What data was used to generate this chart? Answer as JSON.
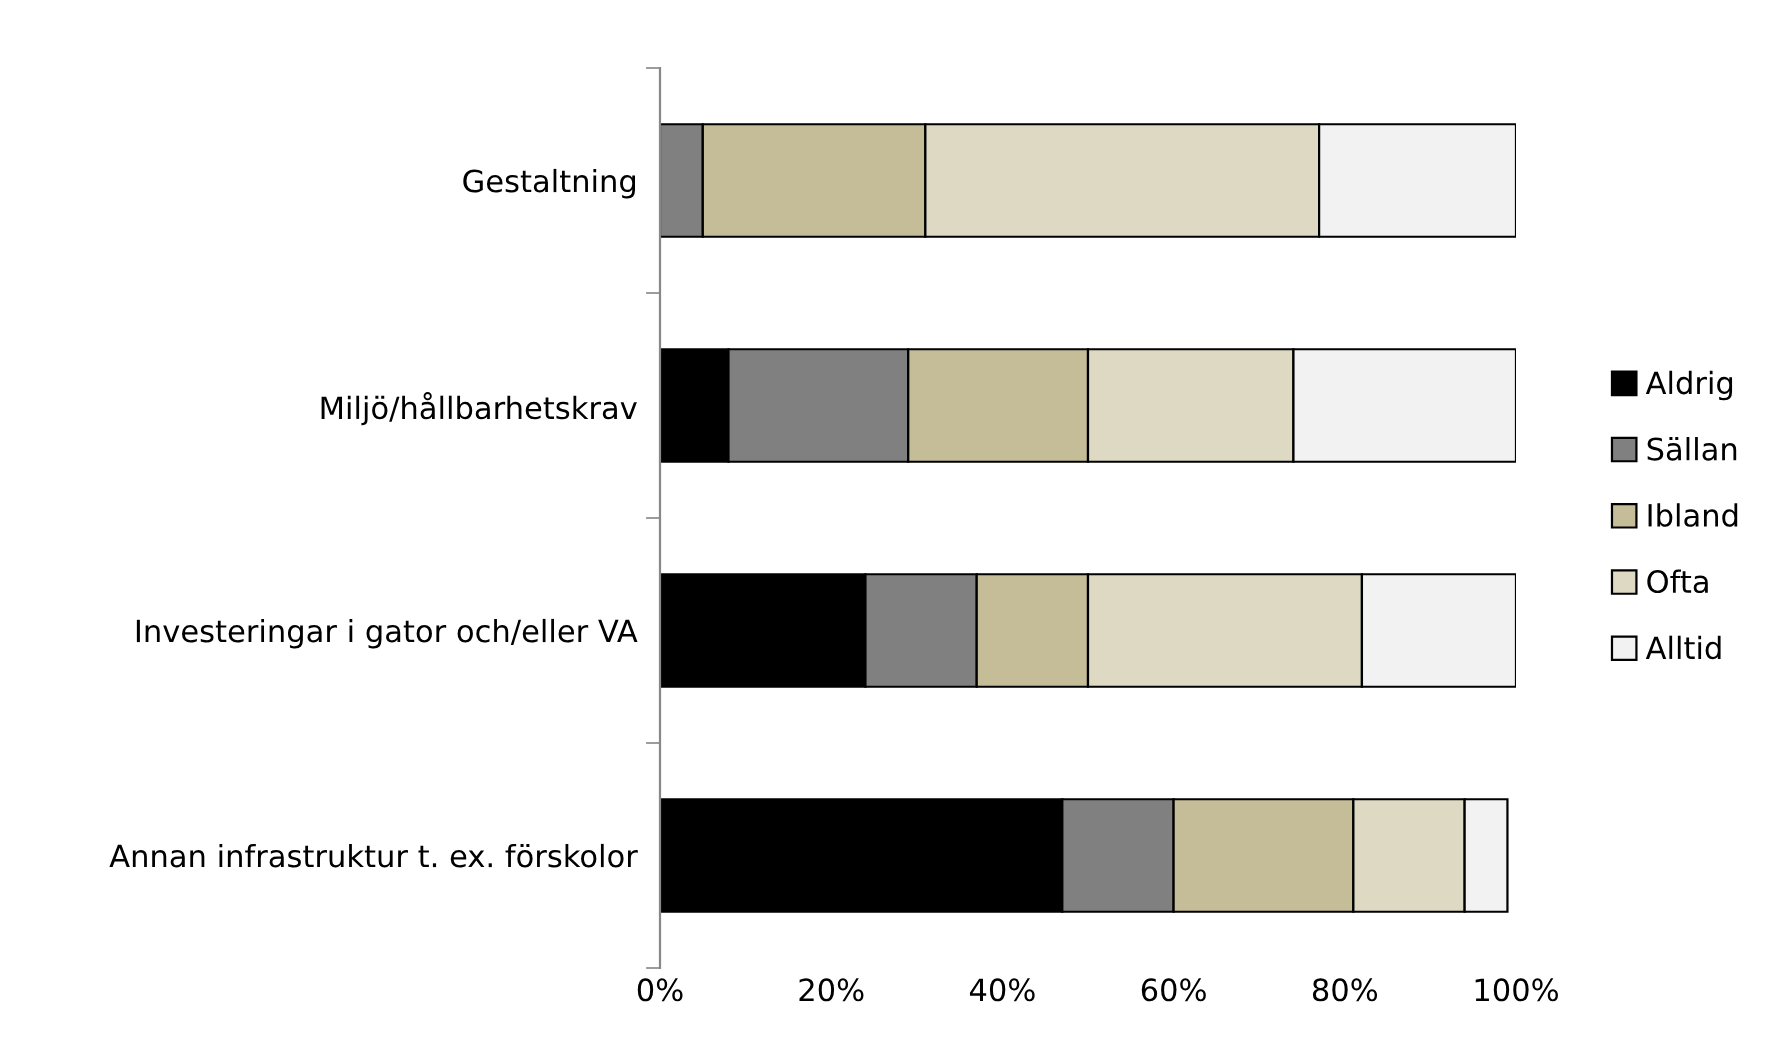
{
  "chart_data": {
    "type": "bar",
    "orientation": "horizontal",
    "stacked": true,
    "categories": [
      "Gestaltning",
      "Miljö/hållbarhetskrav",
      "Investeringar i gator och/eller VA",
      "Annan infrastruktur t. ex. förskolor"
    ],
    "series": [
      {
        "name": "Aldrig",
        "color": "#000000",
        "values": [
          0,
          8,
          24,
          47
        ]
      },
      {
        "name": "Sällan",
        "color": "#808080",
        "values": [
          5,
          21,
          13,
          13
        ]
      },
      {
        "name": "Ibland",
        "color": "#c4bd97",
        "values": [
          26,
          21,
          13,
          21
        ]
      },
      {
        "name": "Ofta",
        "color": "#ddd9c3",
        "values": [
          46,
          24,
          32,
          13
        ]
      },
      {
        "name": "Alltid",
        "color": "#f2f2f2",
        "values": [
          23,
          26,
          18,
          5
        ]
      }
    ],
    "xlim": [
      0,
      100
    ],
    "xticks": [
      {
        "value": 0,
        "label": "0%"
      },
      {
        "value": 20,
        "label": "20%"
      },
      {
        "value": 40,
        "label": "40%"
      },
      {
        "value": 60,
        "label": "60%"
      },
      {
        "value": 80,
        "label": "80%"
      },
      {
        "value": 100,
        "label": "100%"
      }
    ],
    "grid": false,
    "legend": "right"
  }
}
